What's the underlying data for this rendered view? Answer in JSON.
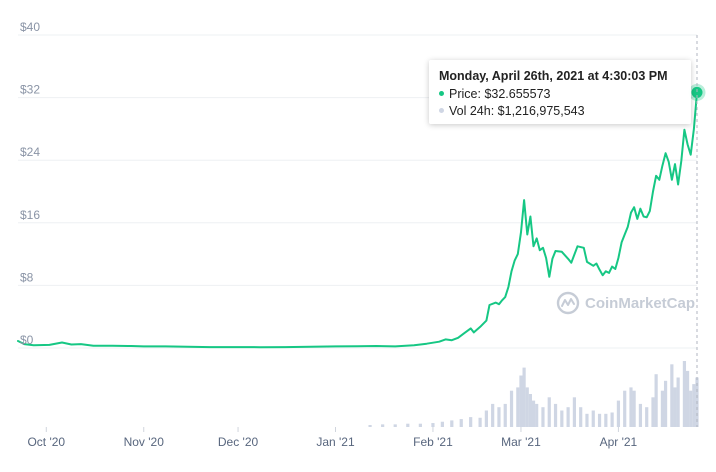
{
  "chart_data": {
    "type": "line",
    "y_ticks": [
      "$40",
      "$32",
      "$24",
      "$16",
      "$8",
      "$0"
    ],
    "y_tick_values": [
      40,
      32,
      24,
      16,
      8,
      0
    ],
    "ylim": [
      0,
      40
    ],
    "x_ticks": [
      "Oct '20",
      "Nov '20",
      "Dec '20",
      "Jan '21",
      "Feb '21",
      "Mar '21",
      "Apr '21"
    ],
    "x_tick_dates": [
      "2020-10-01",
      "2020-11-01",
      "2020-12-01",
      "2021-01-01",
      "2021-02-01",
      "2021-03-01",
      "2021-04-01"
    ],
    "xlim": [
      "2020-09-22",
      "2021-04-26"
    ],
    "grid": true,
    "series": [
      {
        "color": "#16c784",
        "points": [
          [
            "2020-09-22",
            0.9
          ],
          [
            "2020-09-24",
            0.5
          ],
          [
            "2020-09-27",
            0.35
          ],
          [
            "2020-10-02",
            0.4
          ],
          [
            "2020-10-06",
            0.7
          ],
          [
            "2020-10-09",
            0.45
          ],
          [
            "2020-10-12",
            0.5
          ],
          [
            "2020-10-16",
            0.3
          ],
          [
            "2020-10-22",
            0.28
          ],
          [
            "2020-10-28",
            0.25
          ],
          [
            "2020-11-01",
            0.2
          ],
          [
            "2020-11-08",
            0.2
          ],
          [
            "2020-11-15",
            0.15
          ],
          [
            "2020-11-22",
            0.12
          ],
          [
            "2020-12-01",
            0.12
          ],
          [
            "2020-12-08",
            0.1
          ],
          [
            "2020-12-16",
            0.12
          ],
          [
            "2020-12-24",
            0.15
          ],
          [
            "2021-01-01",
            0.2
          ],
          [
            "2021-01-08",
            0.22
          ],
          [
            "2021-01-14",
            0.25
          ],
          [
            "2021-01-20",
            0.2
          ],
          [
            "2021-01-26",
            0.35
          ],
          [
            "2021-01-30",
            0.55
          ],
          [
            "2021-02-03",
            0.8
          ],
          [
            "2021-02-05",
            1.1
          ],
          [
            "2021-02-07",
            1.0
          ],
          [
            "2021-02-09",
            1.3
          ],
          [
            "2021-02-11",
            1.9
          ],
          [
            "2021-02-13",
            2.5
          ],
          [
            "2021-02-14",
            2.0
          ],
          [
            "2021-02-16",
            2.7
          ],
          [
            "2021-02-18",
            3.5
          ],
          [
            "2021-02-19",
            5.5
          ],
          [
            "2021-02-21",
            5.8
          ],
          [
            "2021-02-22",
            5.6
          ],
          [
            "2021-02-23",
            6.1
          ],
          [
            "2021-02-24",
            6.5
          ],
          [
            "2021-02-25",
            7.8
          ],
          [
            "2021-02-26",
            9.8
          ],
          [
            "2021-02-27",
            11.2
          ],
          [
            "2021-02-28",
            12.0
          ],
          [
            "2021-03-01",
            14.8
          ],
          [
            "2021-03-02",
            18.9
          ],
          [
            "2021-03-03",
            14.5
          ],
          [
            "2021-03-04",
            16.8
          ],
          [
            "2021-03-05",
            13.0
          ],
          [
            "2021-03-06",
            14.0
          ],
          [
            "2021-03-07",
            12.5
          ],
          [
            "2021-03-08",
            12.8
          ],
          [
            "2021-03-09",
            11.5
          ],
          [
            "2021-03-10",
            9.1
          ],
          [
            "2021-03-11",
            11.4
          ],
          [
            "2021-03-12",
            12.4
          ],
          [
            "2021-03-14",
            12.3
          ],
          [
            "2021-03-16",
            11.4
          ],
          [
            "2021-03-17",
            10.9
          ],
          [
            "2021-03-19",
            13.0
          ],
          [
            "2021-03-21",
            12.8
          ],
          [
            "2021-03-22",
            11.0
          ],
          [
            "2021-03-24",
            10.5
          ],
          [
            "2021-03-25",
            10.8
          ],
          [
            "2021-03-26",
            10.0
          ],
          [
            "2021-03-27",
            9.3
          ],
          [
            "2021-03-28",
            9.8
          ],
          [
            "2021-03-29",
            9.6
          ],
          [
            "2021-03-30",
            10.4
          ],
          [
            "2021-03-31",
            10.1
          ],
          [
            "2021-04-01",
            11.5
          ],
          [
            "2021-04-02",
            13.5
          ],
          [
            "2021-04-03",
            14.5
          ],
          [
            "2021-04-04",
            15.5
          ],
          [
            "2021-04-05",
            17.3
          ],
          [
            "2021-04-06",
            18.0
          ],
          [
            "2021-04-07",
            16.5
          ],
          [
            "2021-04-08",
            17.8
          ],
          [
            "2021-04-09",
            16.8
          ],
          [
            "2021-04-10",
            16.7
          ],
          [
            "2021-04-11",
            17.5
          ],
          [
            "2021-04-12",
            20.0
          ],
          [
            "2021-04-13",
            22.0
          ],
          [
            "2021-04-14",
            21.5
          ],
          [
            "2021-04-15",
            23.3
          ],
          [
            "2021-04-16",
            24.9
          ],
          [
            "2021-04-17",
            23.8
          ],
          [
            "2021-04-18",
            21.5
          ],
          [
            "2021-04-19",
            23.5
          ],
          [
            "2021-04-20",
            20.9
          ],
          [
            "2021-04-21",
            23.9
          ],
          [
            "2021-04-22",
            27.9
          ],
          [
            "2021-04-23",
            26.0
          ],
          [
            "2021-04-24",
            24.7
          ],
          [
            "2021-04-25",
            28.0
          ],
          [
            "2021-04-26",
            32.66
          ]
        ]
      }
    ],
    "volume": {
      "color": "#cfd6e4",
      "points": [
        [
          "2021-01-12",
          0.03
        ],
        [
          "2021-01-16",
          0.04
        ],
        [
          "2021-01-20",
          0.04
        ],
        [
          "2021-01-24",
          0.05
        ],
        [
          "2021-01-28",
          0.05
        ],
        [
          "2021-02-01",
          0.06
        ],
        [
          "2021-02-04",
          0.08
        ],
        [
          "2021-02-07",
          0.1
        ],
        [
          "2021-02-10",
          0.12
        ],
        [
          "2021-02-13",
          0.15
        ],
        [
          "2021-02-16",
          0.14
        ],
        [
          "2021-02-18",
          0.25
        ],
        [
          "2021-02-20",
          0.35
        ],
        [
          "2021-02-22",
          0.3
        ],
        [
          "2021-02-24",
          0.35
        ],
        [
          "2021-02-26",
          0.55
        ],
        [
          "2021-02-28",
          0.6
        ],
        [
          "2021-03-01",
          0.78
        ],
        [
          "2021-03-02",
          0.9
        ],
        [
          "2021-03-03",
          0.6
        ],
        [
          "2021-03-04",
          0.5
        ],
        [
          "2021-03-05",
          0.4
        ],
        [
          "2021-03-06",
          0.35
        ],
        [
          "2021-03-08",
          0.3
        ],
        [
          "2021-03-10",
          0.45
        ],
        [
          "2021-03-12",
          0.35
        ],
        [
          "2021-03-14",
          0.25
        ],
        [
          "2021-03-16",
          0.3
        ],
        [
          "2021-03-18",
          0.45
        ],
        [
          "2021-03-20",
          0.3
        ],
        [
          "2021-03-22",
          0.2
        ],
        [
          "2021-03-24",
          0.25
        ],
        [
          "2021-03-26",
          0.2
        ],
        [
          "2021-03-28",
          0.2
        ],
        [
          "2021-03-30",
          0.22
        ],
        [
          "2021-04-01",
          0.4
        ],
        [
          "2021-04-03",
          0.55
        ],
        [
          "2021-04-05",
          0.6
        ],
        [
          "2021-04-06",
          0.55
        ],
        [
          "2021-04-08",
          0.35
        ],
        [
          "2021-04-10",
          0.3
        ],
        [
          "2021-04-12",
          0.45
        ],
        [
          "2021-04-13",
          0.8
        ],
        [
          "2021-04-15",
          0.55
        ],
        [
          "2021-04-16",
          0.7
        ],
        [
          "2021-04-18",
          0.95
        ],
        [
          "2021-04-19",
          0.6
        ],
        [
          "2021-04-20",
          0.75
        ],
        [
          "2021-04-22",
          1.0
        ],
        [
          "2021-04-23",
          0.85
        ],
        [
          "2021-04-24",
          0.55
        ],
        [
          "2021-04-25",
          0.65
        ],
        [
          "2021-04-26",
          0.75
        ]
      ]
    },
    "tooltip": {
      "title": "Monday, April 26th, 2021 at 4:30:03 PM",
      "price_label": "Price:",
      "price_value": "$32.655573",
      "volume_label": "Vol 24h:",
      "volume_value": "$1,216,975,543",
      "price_dot_color": "#16c784",
      "volume_dot_color": "#cfd6e4"
    },
    "watermark": "CoinMarketCap"
  }
}
